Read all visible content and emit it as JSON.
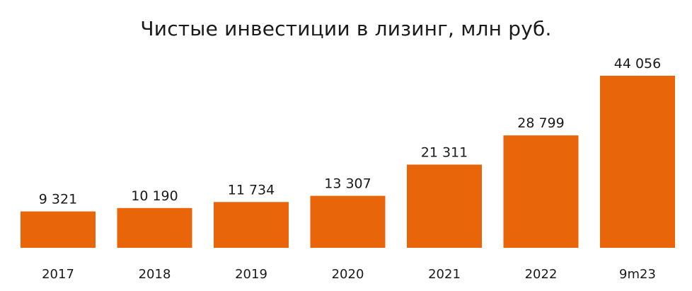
{
  "chart_data": {
    "type": "bar",
    "title": "Чистые инвестиции в лизинг, млн руб.",
    "categories": [
      "2017",
      "2018",
      "2019",
      "2020",
      "2021",
      "2022",
      "9m23"
    ],
    "values": [
      9321,
      10190,
      11734,
      13307,
      21311,
      28799,
      44056
    ],
    "value_labels": [
      "9 321",
      "10 190",
      "11 734",
      "13 307",
      "21 311",
      "28 799",
      "44 056"
    ],
    "xlabel": "",
    "ylabel": "",
    "grid": false,
    "legend": "none",
    "bar_color": "#E8650A"
  }
}
